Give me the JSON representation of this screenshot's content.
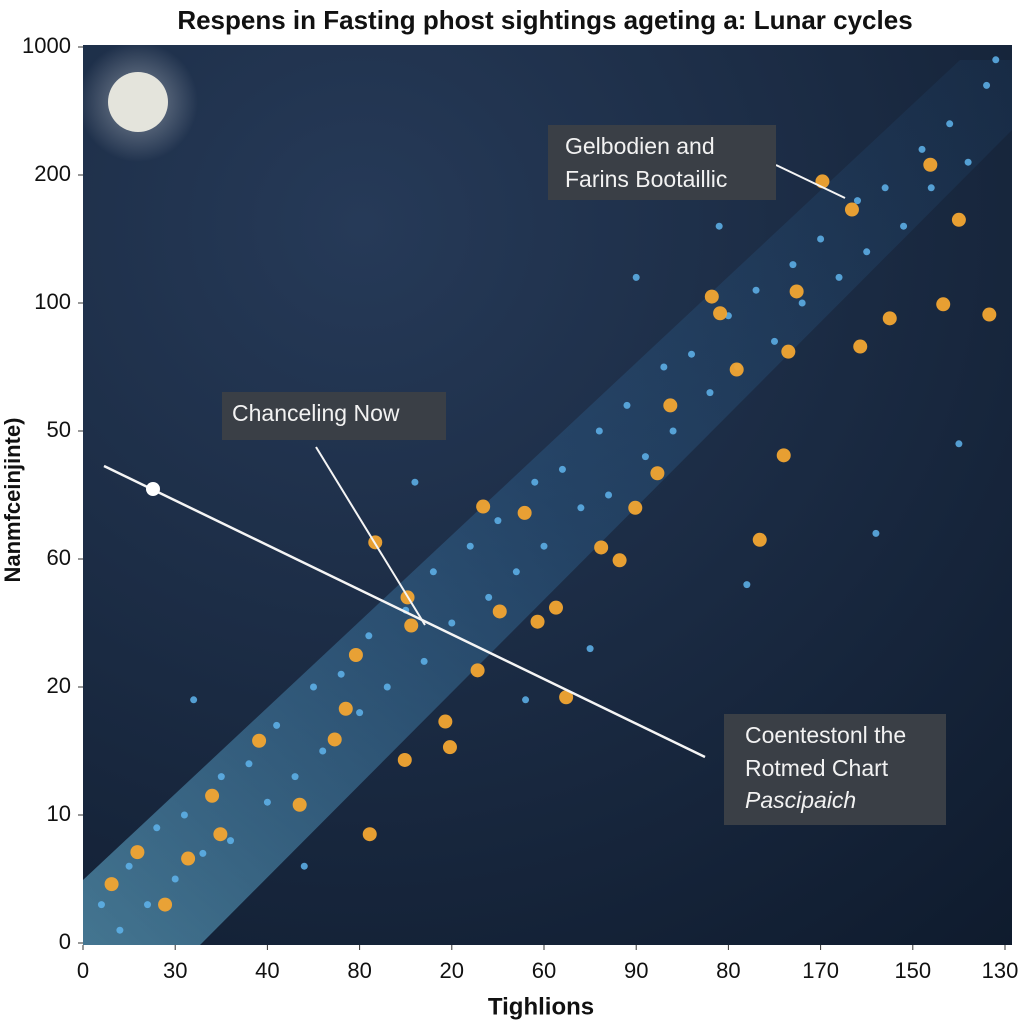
{
  "chart_data": {
    "type": "scatter",
    "title": "Respens in Fasting phost sightings ageting a: Lunar cycles",
    "x_label": "Tighlions",
    "y_label": "Nanmfceinjinte)",
    "xlim": [
      0,
      10
    ],
    "ylim": [
      0,
      7
    ],
    "xticks": [
      {
        "value": 0,
        "label": "0"
      },
      {
        "value": 1,
        "label": "30"
      },
      {
        "value": 2,
        "label": "40"
      },
      {
        "value": 3,
        "label": "80"
      },
      {
        "value": 4,
        "label": "20"
      },
      {
        "value": 5,
        "label": "60"
      },
      {
        "value": 6,
        "label": "90"
      },
      {
        "value": 7,
        "label": "80"
      },
      {
        "value": 8,
        "label": "170"
      },
      {
        "value": 9,
        "label": "150"
      },
      {
        "value": 10,
        "label": "130"
      }
    ],
    "yticks": [
      {
        "value": 0,
        "label": "0"
      },
      {
        "value": 1,
        "label": "10"
      },
      {
        "value": 2,
        "label": "20"
      },
      {
        "value": 3,
        "label": "60"
      },
      {
        "value": 4,
        "label": "50"
      },
      {
        "value": 5,
        "label": "100"
      },
      {
        "value": 6,
        "label": "200"
      },
      {
        "value": 7,
        "label": "1000"
      }
    ],
    "series": [
      {
        "color": "#5fb4ec",
        "x": [
          0.2,
          0.4,
          0.5,
          0.7,
          0.8,
          1.0,
          1.1,
          1.3,
          1.5,
          1.6,
          1.8,
          2.0,
          2.1,
          2.3,
          2.5,
          2.6,
          2.8,
          3.0,
          3.1,
          3.3,
          3.5,
          3.7,
          3.8,
          4.0,
          4.2,
          4.4,
          4.5,
          4.7,
          4.9,
          5.0,
          5.2,
          5.4,
          5.6,
          5.7,
          5.9,
          6.1,
          6.3,
          6.4,
          6.6,
          6.8,
          7.0,
          7.1,
          7.3,
          7.5,
          7.7,
          7.8,
          8.0,
          8.2,
          8.4,
          8.5,
          8.7,
          8.9,
          9.1,
          9.2,
          9.4,
          9.6,
          9.8,
          9.9,
          1.2,
          2.4,
          3.6,
          4.8,
          6.0,
          7.2,
          8.6,
          9.5,
          5.5,
          6.9
        ],
        "y": [
          0.3,
          0.1,
          0.6,
          0.3,
          0.9,
          0.5,
          1.0,
          0.7,
          1.3,
          0.8,
          1.4,
          1.1,
          1.7,
          1.3,
          2.0,
          1.5,
          2.1,
          1.8,
          2.4,
          2.0,
          2.6,
          2.2,
          2.9,
          2.5,
          3.1,
          2.7,
          3.3,
          2.9,
          3.6,
          3.1,
          3.7,
          3.4,
          4.0,
          3.5,
          4.2,
          3.8,
          4.5,
          4.0,
          4.6,
          4.3,
          4.9,
          4.5,
          5.1,
          4.7,
          5.3,
          5.0,
          5.5,
          5.2,
          5.8,
          5.4,
          5.9,
          5.6,
          6.2,
          5.9,
          6.4,
          6.1,
          6.7,
          6.9,
          1.9,
          0.6,
          3.6,
          1.9,
          5.2,
          2.8,
          3.2,
          3.9,
          2.3,
          5.6
        ]
      },
      {
        "color": "#f2a531",
        "x": [
          8.02,
          3.17,
          5.13,
          3.93,
          3.98,
          2.85,
          7.6,
          9.5,
          9.33,
          9.83,
          8.75,
          6.91,
          7.74,
          7.65,
          8.43,
          7.09,
          6.37,
          6.23,
          5.99,
          5.62,
          4.79,
          4.34,
          4.28,
          3.56,
          3.52,
          2.96,
          1.91,
          1.4,
          1.49,
          0.59,
          0.31,
          0.89,
          1.14,
          2.35,
          3.11,
          5.24,
          4.93,
          4.52,
          6.82,
          8.34,
          9.19,
          7.34,
          5.82,
          3.49,
          2.73
        ],
        "y": [
          5.95,
          3.13,
          2.62,
          1.73,
          1.53,
          1.83,
          3.81,
          5.65,
          4.99,
          4.91,
          4.88,
          4.92,
          5.09,
          4.62,
          4.66,
          4.48,
          4.2,
          3.67,
          3.4,
          3.09,
          3.36,
          3.41,
          2.13,
          2.48,
          2.7,
          2.25,
          1.58,
          1.15,
          0.85,
          0.71,
          0.46,
          0.3,
          0.66,
          1.08,
          0.85,
          1.92,
          2.51,
          2.59,
          5.05,
          5.73,
          6.08,
          3.15,
          2.99,
          1.43,
          1.59
        ]
      }
    ],
    "annotations": [
      {
        "lines": [
          "Gelbodien and",
          "Farins Bootaillic"
        ]
      },
      {
        "lines": [
          "Chanceling Now"
        ]
      },
      {
        "lines": [
          "Coentestonl the",
          "Rotmed Chart",
          "Pascipaich"
        ]
      }
    ]
  }
}
